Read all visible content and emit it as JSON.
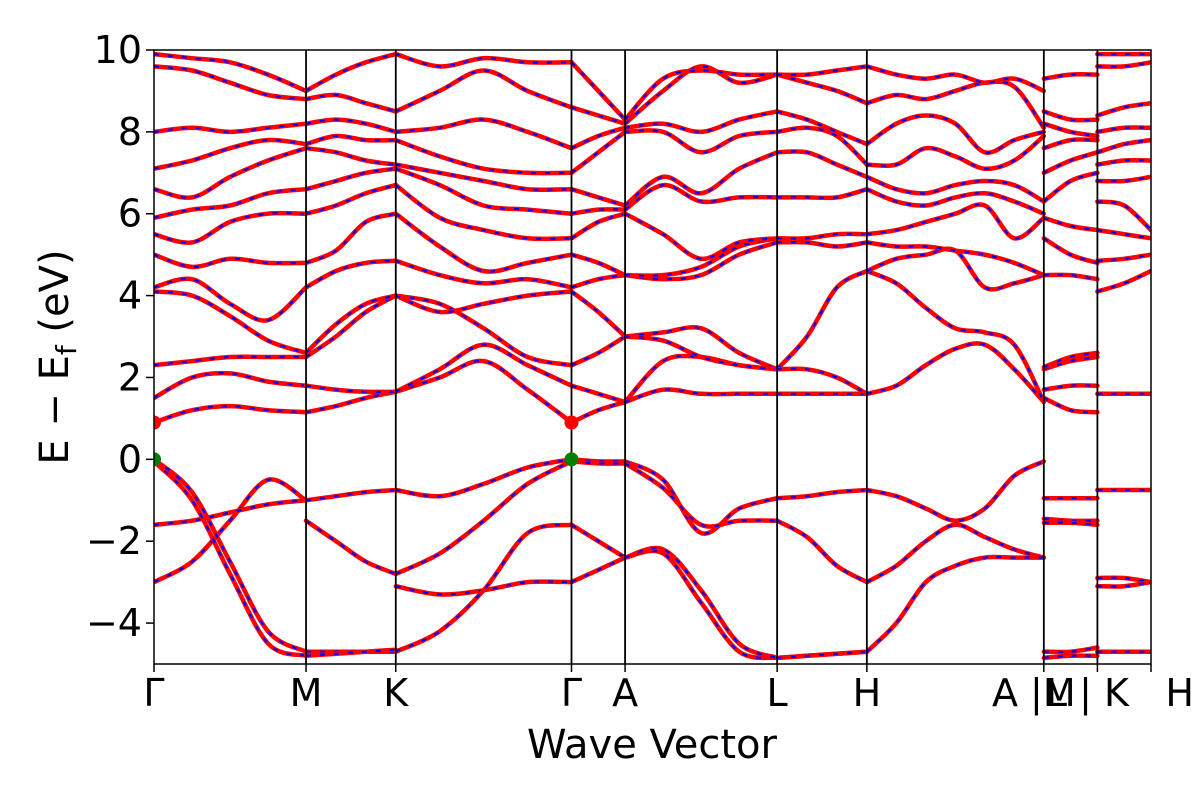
{
  "chart_data": {
    "type": "line",
    "title": "",
    "xlabel": "Wave Vector",
    "ylabel": "E − E_f (eV)",
    "ylabel_main": "E − E",
    "ylabel_sub": "f",
    "ylabel_unit": " (eV)",
    "ylim": [
      -5,
      10
    ],
    "xlim": [
      0,
      8.0
    ],
    "grid": false,
    "legend": "none",
    "y_ticks": [
      -4,
      -2,
      0,
      2,
      4,
      6,
      8,
      10
    ],
    "y_tick_labels": [
      "−4",
      "−2",
      "0",
      "2",
      "4",
      "6",
      "8",
      "10"
    ],
    "k_points": [
      {
        "label": "Γ",
        "x": 0.0
      },
      {
        "label": "M",
        "x": 1.22
      },
      {
        "label": "K",
        "x": 1.94
      },
      {
        "label": "Γ",
        "x": 3.35
      },
      {
        "label": "A",
        "x": 3.78
      },
      {
        "label": "L",
        "x": 5.0
      },
      {
        "label": "H",
        "x": 5.72
      },
      {
        "label": "A |M",
        "x": 7.14
      },
      {
        "label": "L | K",
        "x": 7.57
      },
      {
        "label": "H",
        "x": 8.0
      }
    ],
    "colors": {
      "primary": "#ff0000",
      "overlay": "#0000ff",
      "cbm": "#ff0000",
      "vbm": "#008000"
    },
    "special_points": [
      {
        "name": "cbm",
        "x": 0.0,
        "y": 0.9
      },
      {
        "name": "cbm",
        "x": 3.35,
        "y": 0.9
      },
      {
        "name": "vbm",
        "x": 0.0,
        "y": 0.0
      },
      {
        "name": "vbm",
        "x": 3.35,
        "y": 0.0
      }
    ],
    "segments": [
      {
        "x0": 0.0,
        "x1": 1.22,
        "bands": [
          [
            -3.0,
            -2.5,
            -1.5,
            -0.5,
            -1.0
          ],
          [
            -1.6,
            -1.5,
            -1.3,
            -1.1,
            -1.0
          ],
          [
            -0.05,
            -1.0,
            -2.8,
            -4.5,
            -4.8
          ],
          [
            0.0,
            -0.8,
            -2.5,
            -4.2,
            -4.7
          ],
          [
            0.9,
            1.2,
            1.3,
            1.2,
            1.15
          ],
          [
            1.5,
            2.0,
            2.1,
            1.9,
            1.8
          ],
          [
            2.3,
            2.4,
            2.5,
            2.5,
            2.5
          ],
          [
            4.1,
            4.0,
            3.5,
            2.9,
            2.6
          ],
          [
            4.2,
            4.4,
            3.8,
            3.4,
            4.2
          ],
          [
            5.0,
            4.7,
            4.9,
            4.8,
            4.8
          ],
          [
            5.5,
            5.3,
            5.8,
            6.0,
            6.0
          ],
          [
            5.9,
            6.1,
            6.2,
            6.5,
            6.6
          ],
          [
            6.6,
            6.4,
            6.9,
            7.3,
            7.6
          ],
          [
            7.1,
            7.3,
            7.6,
            7.8,
            7.7
          ],
          [
            8.0,
            8.1,
            8.0,
            8.1,
            8.2
          ],
          [
            9.6,
            9.5,
            9.2,
            8.9,
            8.8
          ],
          [
            9.9,
            9.8,
            9.7,
            9.4,
            9.0
          ]
        ]
      },
      {
        "x0": 1.22,
        "x1": 1.94,
        "bands": [
          [
            -1.0,
            -0.9,
            -0.8,
            -0.75
          ],
          [
            -1.5,
            -2.0,
            -2.5,
            -2.8
          ],
          [
            -4.7,
            -4.7,
            -4.7,
            -4.7
          ],
          [
            -4.8,
            -4.75,
            -4.7,
            -4.65
          ],
          [
            1.15,
            1.3,
            1.5,
            1.65
          ],
          [
            1.8,
            1.7,
            1.65,
            1.65
          ],
          [
            2.5,
            3.0,
            3.6,
            4.0
          ],
          [
            2.6,
            3.3,
            3.8,
            4.0
          ],
          [
            4.2,
            4.6,
            4.8,
            4.85
          ],
          [
            4.8,
            5.1,
            5.8,
            6.0
          ],
          [
            6.0,
            6.2,
            6.5,
            6.7
          ],
          [
            6.6,
            6.8,
            7.0,
            7.1
          ],
          [
            7.6,
            7.5,
            7.3,
            7.2
          ],
          [
            7.7,
            7.9,
            7.8,
            7.8
          ],
          [
            8.2,
            8.3,
            8.2,
            8.0
          ],
          [
            8.8,
            8.9,
            8.7,
            8.5
          ],
          [
            9.0,
            9.4,
            9.7,
            9.9
          ]
        ]
      },
      {
        "x0": 1.94,
        "x1": 3.35,
        "bands": [
          [
            -0.75,
            -0.9,
            -0.6,
            -0.2,
            0.0
          ],
          [
            -2.8,
            -2.3,
            -1.5,
            -0.6,
            -0.05
          ],
          [
            -3.1,
            -3.3,
            -3.2,
            -3.0,
            -3.0
          ],
          [
            -4.7,
            -4.2,
            -3.2,
            -1.8,
            -1.6
          ],
          [
            1.65,
            2.0,
            2.4,
            1.7,
            0.9
          ],
          [
            1.65,
            2.2,
            2.8,
            2.3,
            1.8
          ],
          [
            4.0,
            3.8,
            3.2,
            2.5,
            2.3
          ],
          [
            4.0,
            3.6,
            3.8,
            4.0,
            4.1
          ],
          [
            4.85,
            4.5,
            4.3,
            4.4,
            4.2
          ],
          [
            6.0,
            5.2,
            4.6,
            4.8,
            5.0
          ],
          [
            6.7,
            5.9,
            5.6,
            5.4,
            5.4
          ],
          [
            7.1,
            6.7,
            6.2,
            6.1,
            6.0
          ],
          [
            7.2,
            7.0,
            6.8,
            6.6,
            6.6
          ],
          [
            7.8,
            7.4,
            7.1,
            7.0,
            7.0
          ],
          [
            8.0,
            8.1,
            8.3,
            8.0,
            7.6
          ],
          [
            8.5,
            9.0,
            9.5,
            9.0,
            8.6
          ],
          [
            9.9,
            9.6,
            9.8,
            9.7,
            9.7
          ]
        ]
      },
      {
        "x0": 3.35,
        "x1": 3.78,
        "bands": [
          [
            0.0,
            -0.05,
            -0.05
          ],
          [
            -0.05,
            -0.1,
            -0.1
          ],
          [
            -1.6,
            -2.0,
            -2.4
          ],
          [
            -3.0,
            -2.7,
            -2.4
          ],
          [
            0.9,
            1.2,
            1.4
          ],
          [
            1.8,
            1.6,
            1.4
          ],
          [
            2.3,
            2.6,
            3.0
          ],
          [
            4.1,
            3.6,
            3.0
          ],
          [
            4.2,
            4.4,
            4.5
          ],
          [
            5.0,
            4.8,
            4.5
          ],
          [
            5.4,
            5.8,
            6.0
          ],
          [
            6.0,
            6.1,
            6.1
          ],
          [
            6.6,
            6.4,
            6.2
          ],
          [
            7.0,
            7.5,
            8.0
          ],
          [
            7.6,
            7.9,
            8.1
          ],
          [
            8.6,
            8.4,
            8.2
          ],
          [
            9.7,
            9.0,
            8.3
          ]
        ]
      },
      {
        "x0": 3.78,
        "x1": 5.0,
        "bands": [
          [
            -0.05,
            -0.5,
            -1.8,
            -1.2,
            -0.95
          ],
          [
            -0.1,
            -0.7,
            -1.6,
            -1.5,
            -1.5
          ],
          [
            -2.4,
            -2.3,
            -3.5,
            -4.7,
            -4.85
          ],
          [
            -2.4,
            -2.2,
            -3.2,
            -4.5,
            -4.85
          ],
          [
            1.4,
            2.4,
            2.5,
            2.3,
            2.2
          ],
          [
            1.4,
            1.7,
            1.6,
            1.6,
            1.6
          ],
          [
            3.0,
            3.1,
            3.2,
            2.6,
            2.2
          ],
          [
            3.0,
            2.9,
            2.5,
            2.3,
            2.2
          ],
          [
            4.5,
            4.4,
            4.5,
            5.0,
            5.3
          ],
          [
            4.5,
            4.5,
            4.7,
            5.2,
            5.4
          ],
          [
            6.0,
            5.5,
            4.9,
            5.3,
            5.4
          ],
          [
            6.1,
            6.7,
            6.3,
            6.4,
            6.4
          ],
          [
            6.2,
            6.9,
            6.5,
            7.1,
            7.5
          ],
          [
            8.0,
            8.0,
            7.5,
            7.9,
            8.0
          ],
          [
            8.1,
            8.2,
            8.0,
            8.3,
            8.5
          ],
          [
            8.2,
            9.0,
            9.6,
            9.2,
            9.4
          ],
          [
            8.3,
            9.3,
            9.5,
            9.4,
            9.4
          ]
        ]
      },
      {
        "x0": 5.0,
        "x1": 5.72,
        "bands": [
          [
            -0.95,
            -0.9,
            -0.8,
            -0.75
          ],
          [
            -1.5,
            -1.9,
            -2.6,
            -3.0
          ],
          [
            -4.85,
            -4.8,
            -4.75,
            -4.7
          ],
          [
            -4.85,
            -4.8,
            -4.75,
            -4.7
          ],
          [
            2.2,
            3.0,
            4.2,
            4.6
          ],
          [
            1.6,
            1.6,
            1.6,
            1.6
          ],
          [
            2.2,
            2.2,
            2.0,
            1.6
          ],
          [
            5.3,
            5.3,
            5.2,
            5.3
          ],
          [
            5.4,
            5.4,
            5.5,
            5.5
          ],
          [
            6.4,
            6.4,
            6.4,
            6.6
          ],
          [
            7.5,
            7.5,
            7.2,
            6.9
          ],
          [
            8.0,
            8.1,
            7.9,
            7.2
          ],
          [
            8.5,
            8.3,
            8.0,
            7.7
          ],
          [
            9.4,
            9.2,
            9.0,
            8.7
          ],
          [
            9.4,
            9.4,
            9.5,
            9.6
          ]
        ]
      },
      {
        "x0": 5.72,
        "x1": 7.14,
        "bands": [
          [
            -0.75,
            -0.9,
            -1.2,
            -1.5,
            -1.2,
            -0.4,
            -0.05
          ],
          [
            -3.0,
            -2.6,
            -2.0,
            -1.6,
            -1.9,
            -2.2,
            -2.4
          ],
          [
            -4.7,
            -4.0,
            -3.0,
            -2.6,
            -2.4,
            -2.4,
            -2.4
          ],
          [
            1.6,
            1.8,
            2.3,
            2.7,
            2.8,
            2.2,
            1.4
          ],
          [
            4.6,
            4.3,
            3.7,
            3.2,
            3.1,
            2.8,
            1.4
          ],
          [
            4.6,
            4.9,
            5.0,
            5.1,
            4.2,
            4.3,
            4.5
          ],
          [
            5.3,
            5.2,
            5.2,
            5.1,
            5.0,
            4.8,
            4.5
          ],
          [
            5.5,
            5.6,
            5.8,
            6.0,
            6.2,
            5.4,
            5.9
          ],
          [
            6.6,
            6.3,
            6.2,
            6.4,
            6.5,
            6.3,
            6.0
          ],
          [
            6.9,
            6.6,
            6.5,
            6.7,
            6.8,
            6.7,
            6.3
          ],
          [
            7.2,
            7.2,
            7.6,
            7.4,
            7.1,
            7.3,
            7.9
          ],
          [
            7.7,
            8.2,
            8.4,
            8.2,
            7.5,
            7.8,
            8.0
          ],
          [
            8.7,
            8.9,
            8.8,
            9.0,
            9.2,
            9.1,
            8.1
          ],
          [
            9.6,
            9.4,
            9.3,
            9.4,
            9.2,
            9.3,
            9.0
          ]
        ]
      },
      {
        "x0": 7.14,
        "x1": 7.57,
        "bands": [
          [
            -0.95,
            -0.95,
            -0.95
          ],
          [
            -1.45,
            -1.5,
            -1.5
          ],
          [
            -1.55,
            -1.55,
            -1.6
          ],
          [
            -4.7,
            -4.7,
            -4.6
          ],
          [
            -4.85,
            -4.8,
            -4.8
          ],
          [
            1.5,
            1.2,
            1.15
          ],
          [
            1.7,
            1.8,
            1.8
          ],
          [
            2.2,
            2.4,
            2.5
          ],
          [
            2.25,
            2.5,
            2.6
          ],
          [
            4.5,
            4.5,
            4.4
          ],
          [
            5.4,
            5.0,
            4.8
          ],
          [
            5.9,
            5.7,
            5.6
          ],
          [
            6.3,
            6.8,
            7.0
          ],
          [
            7.0,
            7.3,
            7.5
          ],
          [
            7.6,
            7.8,
            7.8
          ],
          [
            8.2,
            8.0,
            7.9
          ],
          [
            8.5,
            8.3,
            8.3
          ],
          [
            9.3,
            9.4,
            9.4
          ]
        ]
      },
      {
        "x0": 7.57,
        "x1": 8.0,
        "bands": [
          [
            -0.75,
            -0.75,
            -0.75
          ],
          [
            -2.9,
            -2.9,
            -3.0
          ],
          [
            -3.1,
            -3.1,
            -3.0
          ],
          [
            -4.7,
            -4.7,
            -4.7
          ],
          [
            -4.7,
            -4.7,
            -4.7
          ],
          [
            1.6,
            1.6,
            1.6
          ],
          [
            4.1,
            4.3,
            4.6
          ],
          [
            4.85,
            4.9,
            5.0
          ],
          [
            5.6,
            5.5,
            5.4
          ],
          [
            6.3,
            6.2,
            5.6
          ],
          [
            6.8,
            6.8,
            6.9
          ],
          [
            7.2,
            7.3,
            7.3
          ],
          [
            7.5,
            7.7,
            7.8
          ],
          [
            8.0,
            8.1,
            8.1
          ],
          [
            8.4,
            8.6,
            8.7
          ],
          [
            9.6,
            9.6,
            9.7
          ],
          [
            9.9,
            9.9,
            9.9
          ]
        ]
      }
    ]
  }
}
